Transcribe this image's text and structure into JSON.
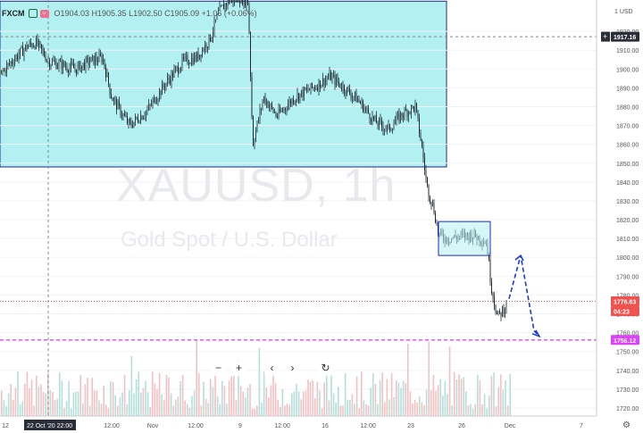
{
  "header": {
    "symbol": "FXCM",
    "ohlc": "O1904.03 H1905.35 L1902.50 C1905.09 +1.06 (+0.06%)"
  },
  "watermark": {
    "line1": "XAUUSD, 1h",
    "line2": "Gold Spot / U.S. Dollar"
  },
  "nav_buttons": [
    "−",
    "+",
    "‹",
    "›",
    "↻"
  ],
  "settings_icon": "gear-icon",
  "colors": {
    "up": "#26a69a",
    "down": "#ef5350",
    "box_fill": "#b2f0f2",
    "box_border": "#1d2bd1",
    "price_line": "#ef5350",
    "support_line": "#e040fb",
    "crosshair": "#888888",
    "projection": "#1a3bd6"
  },
  "chart_data": {
    "type": "candlestick",
    "title": "XAUUSD, 1h",
    "subtitle": "Gold Spot / U.S. Dollar",
    "y_ticks": [
      1720,
      1730,
      1740,
      1750,
      1760,
      1770,
      1780,
      1790,
      1800,
      1810,
      1820,
      1830,
      1840,
      1850,
      1860,
      1870,
      1880,
      1890,
      1900,
      1910,
      1920
    ],
    "y_top_label": "1 USD",
    "ylim": [
      1715,
      1936
    ],
    "x_ticks": [
      "12",
      "22 Oct '20",
      "22:00",
      "12:00",
      "Nov",
      "12:00",
      "9",
      "12:00",
      "16",
      "12:00",
      "23",
      "26",
      "Dec",
      "7"
    ],
    "price_labels": {
      "crosshair": "1917.16",
      "last": "1776.63",
      "countdown": "04:23",
      "support": "1756.12"
    },
    "path_points": [
      [
        0,
        1897
      ],
      [
        15,
        1905
      ],
      [
        30,
        1912
      ],
      [
        40,
        1914
      ],
      [
        55,
        1904
      ],
      [
        70,
        1902
      ],
      [
        85,
        1900
      ],
      [
        100,
        1904
      ],
      [
        115,
        1906
      ],
      [
        125,
        1885
      ],
      [
        145,
        1870
      ],
      [
        165,
        1878
      ],
      [
        185,
        1892
      ],
      [
        205,
        1904
      ],
      [
        220,
        1906
      ],
      [
        235,
        1916
      ],
      [
        245,
        1930
      ],
      [
        255,
        1936
      ],
      [
        270,
        1938
      ],
      [
        278,
        1935
      ],
      [
        283,
        1860
      ],
      [
        295,
        1885
      ],
      [
        310,
        1875
      ],
      [
        330,
        1885
      ],
      [
        350,
        1890
      ],
      [
        370,
        1896
      ],
      [
        385,
        1890
      ],
      [
        400,
        1884
      ],
      [
        420,
        1872
      ],
      [
        435,
        1868
      ],
      [
        450,
        1876
      ],
      [
        465,
        1880
      ],
      [
        472,
        1860
      ],
      [
        478,
        1838
      ],
      [
        486,
        1825
      ],
      [
        491,
        1812
      ],
      [
        500,
        1810
      ],
      [
        515,
        1811
      ],
      [
        530,
        1812
      ],
      [
        545,
        1808
      ],
      [
        550,
        1785
      ],
      [
        557,
        1768
      ],
      [
        563,
        1772
      ],
      [
        568,
        1776
      ]
    ],
    "annotations": {
      "upper_box": {
        "x_range": [
          0,
          500
        ],
        "y_range": [
          1848,
          1936
        ]
      },
      "small_box": {
        "x_range": [
          491,
          549
        ],
        "y_range": [
          1801,
          1819
        ]
      },
      "support_y": 1756.12,
      "crosshair_y": 1917.16,
      "projection": [
        [
          570,
          1778
        ],
        [
          583,
          1801
        ],
        [
          598,
          1761
        ],
        [
          604,
          1758
        ]
      ]
    },
    "volume_ylim": [
      0,
      1
    ]
  }
}
